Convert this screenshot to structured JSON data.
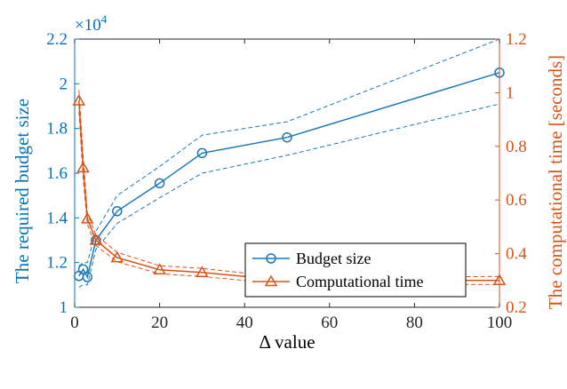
{
  "chart_data": {
    "type": "line",
    "xlabel": "Δ value",
    "ylabel_left": "The required budget size",
    "ylabel_right": "The computational time [seconds]",
    "exponent_label": "×10",
    "exponent_power": "4",
    "xlim": [
      0,
      100
    ],
    "ylim_left": [
      1,
      2.2
    ],
    "ylim_right": [
      0.2,
      1.2
    ],
    "xticks": [
      0,
      20,
      40,
      60,
      80,
      100
    ],
    "yticks_left": [
      1,
      1.2,
      1.4,
      1.6,
      1.8,
      2,
      2.2
    ],
    "yticks_left_labels": [
      "1",
      "1.2",
      "1.4",
      "1.6",
      "1.8",
      "2",
      "2.2"
    ],
    "yticks_right": [
      0.2,
      0.4,
      0.6,
      0.8,
      1,
      1.2
    ],
    "yticks_right_labels": [
      "0.2",
      "0.4",
      "0.6",
      "0.8",
      "1",
      "1.2"
    ],
    "legend_position": "center-right",
    "colors": {
      "budget": "#1f77b4",
      "time": "#d95319",
      "left_axis": "#0072bd",
      "right_axis": "#d95319"
    },
    "series": [
      {
        "name": "Budget size",
        "axis": "left",
        "marker": "circle",
        "x": [
          1,
          2,
          3,
          5,
          10,
          20,
          30,
          50,
          100
        ],
        "y": [
          1.14,
          1.17,
          1.135,
          1.3,
          1.43,
          1.555,
          1.69,
          1.76,
          2.05
        ],
        "upper": [
          1.185,
          1.2,
          1.2,
          1.34,
          1.5,
          1.63,
          1.77,
          1.83,
          2.2
        ],
        "lower": [
          1.09,
          1.1,
          1.1,
          1.26,
          1.375,
          1.49,
          1.6,
          1.68,
          1.91
        ]
      },
      {
        "name": "Computational time",
        "axis": "right",
        "marker": "triangle",
        "x": [
          1,
          2,
          3,
          5,
          10,
          20,
          30,
          50,
          100
        ],
        "y": [
          0.97,
          0.72,
          0.53,
          0.45,
          0.385,
          0.34,
          0.33,
          0.3,
          0.3
        ],
        "upper": [
          1.01,
          0.76,
          0.55,
          0.47,
          0.405,
          0.355,
          0.345,
          0.31,
          0.315
        ],
        "lower": [
          0.93,
          0.68,
          0.51,
          0.43,
          0.37,
          0.325,
          0.315,
          0.285,
          0.285
        ]
      }
    ]
  }
}
